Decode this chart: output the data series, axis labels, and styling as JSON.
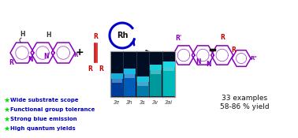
{
  "bg_color": "#ffffff",
  "bullet_color": "#00dd00",
  "bullet_text_color": "#0000cc",
  "bullets": [
    "Wide substrate scope",
    "Functional group tolerance",
    "Strong blue emission",
    "High quantum yields"
  ],
  "yield_text": "33 examples\n58-86 % yield",
  "yield_color": "#111111",
  "rh_circle_color": "#0000cc",
  "arrow_color": "#111111",
  "alkyne_color": "#cc0000",
  "r_color_red": "#cc0000",
  "r_color_purple": "#8800bb",
  "struct_color": "#8800bb",
  "h_color": "#333333",
  "label_3e": "3e",
  "label_3h": "3h",
  "label_3s": "3s",
  "label_3v": "3v",
  "label_3ai": "3ai",
  "photo_dark": "#000818",
  "photo_border": "#999999",
  "tube_colors": [
    "#0044aa",
    "#0066cc",
    "#0088bb",
    "#00aaaa",
    "#00cccc"
  ],
  "glow_color": "#22eeff",
  "tube_dark": "#000d22"
}
